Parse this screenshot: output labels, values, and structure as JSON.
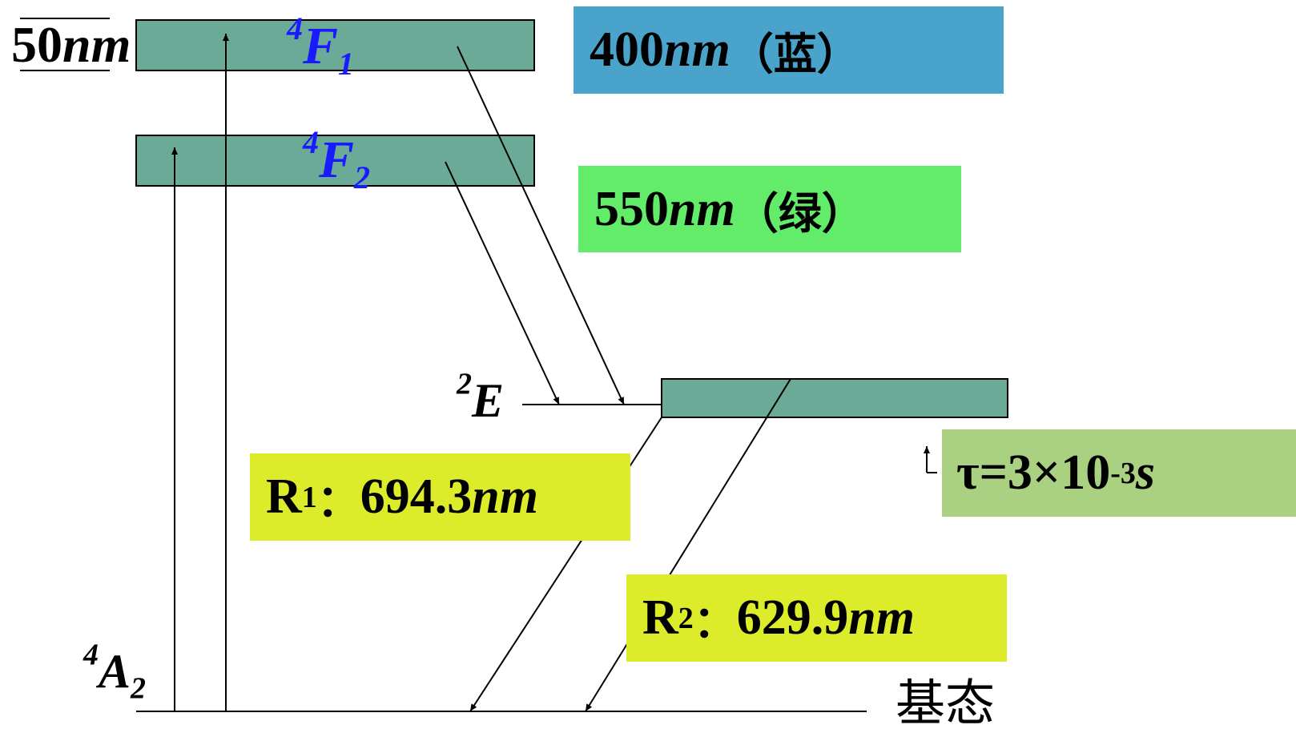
{
  "diagram": {
    "scale_label": {
      "value": "50",
      "unit": "nm"
    },
    "levels": {
      "f1": {
        "sup": "4",
        "main": "F",
        "sub": "1"
      },
      "f2": {
        "sup": "4",
        "main": "F",
        "sub": "2"
      },
      "e2": {
        "sup": "2",
        "main": "E"
      },
      "a2": {
        "sup": "4",
        "main": "A",
        "sub": "2"
      }
    },
    "ground_label": "基态",
    "boxes": {
      "blue": {
        "value": "400",
        "unit": "nm",
        "note": "（蓝）",
        "color": "#4aa3cb"
      },
      "green": {
        "value": "550",
        "unit": "nm",
        "note": "（绿）",
        "color": "#63ec6a"
      },
      "r1": {
        "name": "R",
        "sub": "1",
        "sep": "：",
        "value": "694.3",
        "unit": "nm",
        "color": "#dcec2a"
      },
      "r2": {
        "name": "R",
        "sub": "2",
        "sep": "：",
        "value": "629.9",
        "unit": "nm",
        "color": "#dcec2a"
      },
      "tau": {
        "symbol": "τ",
        "eq": "=3×10",
        "exp": "-3",
        "unit": "s",
        "color": "#a9d181"
      }
    },
    "band_color": "#6aaa96"
  }
}
